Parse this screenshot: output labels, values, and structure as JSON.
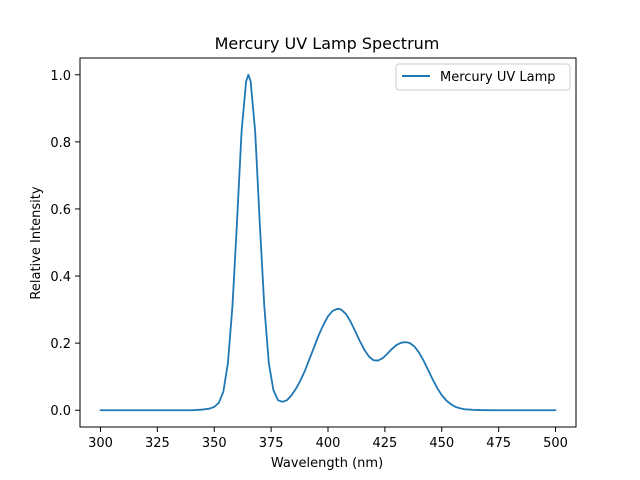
{
  "chart_data": {
    "type": "line",
    "title": "Mercury UV Lamp Spectrum",
    "xlabel": "Wavelength (nm)",
    "ylabel": "Relative Intensity",
    "xlim": [
      291,
      509
    ],
    "ylim": [
      -0.05,
      1.05
    ],
    "xticks": [
      300,
      325,
      350,
      375,
      400,
      425,
      450,
      475,
      500
    ],
    "xtick_labels": [
      "300",
      "325",
      "350",
      "375",
      "400",
      "425",
      "450",
      "475",
      "500"
    ],
    "yticks": [
      0.0,
      0.2,
      0.4,
      0.6,
      0.8,
      1.0
    ],
    "ytick_labels": [
      "0.0",
      "0.2",
      "0.4",
      "0.6",
      "0.8",
      "1.0"
    ],
    "grid": false,
    "legend_position": "top-right",
    "series": [
      {
        "name": "Mercury UV Lamp",
        "color": "#1f77b4",
        "x": [
          300,
          340,
          345,
          348,
          350,
          352,
          354,
          356,
          358,
          360,
          362,
          364,
          365,
          366,
          368,
          370,
          372,
          374,
          376,
          378,
          380,
          382,
          384,
          386,
          388,
          390,
          392,
          394,
          396,
          398,
          400,
          402,
          404,
          405,
          406,
          408,
          410,
          412,
          414,
          416,
          418,
          420,
          422,
          424,
          426,
          428,
          430,
          432,
          434,
          435,
          436,
          438,
          440,
          442,
          444,
          446,
          448,
          450,
          452,
          454,
          456,
          458,
          460,
          462,
          464,
          466,
          468,
          470,
          475,
          480,
          490,
          500
        ],
        "y": [
          0.0,
          0.0,
          0.002,
          0.005,
          0.01,
          0.022,
          0.055,
          0.14,
          0.31,
          0.56,
          0.83,
          0.98,
          1.0,
          0.98,
          0.83,
          0.56,
          0.31,
          0.14,
          0.06,
          0.03,
          0.025,
          0.03,
          0.045,
          0.065,
          0.09,
          0.12,
          0.155,
          0.19,
          0.225,
          0.255,
          0.28,
          0.296,
          0.302,
          0.302,
          0.299,
          0.286,
          0.263,
          0.235,
          0.206,
          0.18,
          0.16,
          0.149,
          0.148,
          0.155,
          0.168,
          0.182,
          0.194,
          0.201,
          0.203,
          0.202,
          0.2,
          0.19,
          0.172,
          0.148,
          0.12,
          0.092,
          0.066,
          0.045,
          0.029,
          0.018,
          0.01,
          0.006,
          0.003,
          0.002,
          0.001,
          0.0005,
          0.0002,
          0.0001,
          0.0,
          0.0,
          0.0,
          0.0
        ]
      }
    ]
  }
}
